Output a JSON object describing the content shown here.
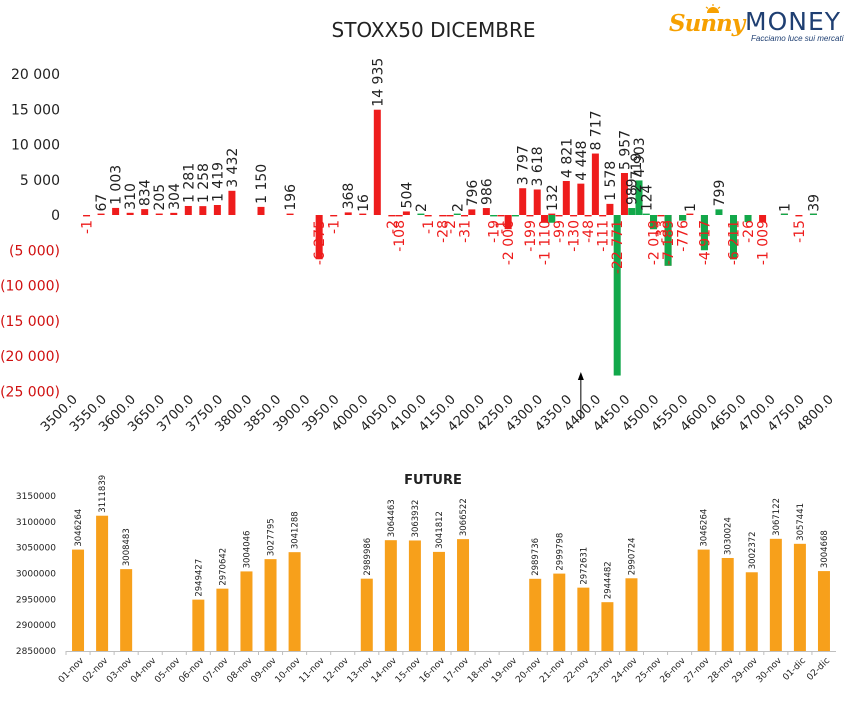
{
  "title": "STOXX50 DICEMBRE",
  "logo": {
    "word1": "Sunny",
    "word2": "MONEY",
    "tagline": "Facciamo luce sui mercati"
  },
  "colors": {
    "red": "#ee1c1c",
    "green": "#12a84a",
    "orange": "#f7a01b",
    "axis_neg": "#d01010",
    "text": "#222222"
  },
  "chart_data": [
    {
      "type": "bar",
      "title": "STOXX50 DICEMBRE",
      "xlabel": "",
      "ylabel": "",
      "ylim": [
        -25000,
        20000
      ],
      "yticks": [
        {
          "v": 20000,
          "label": "20 000"
        },
        {
          "v": 15000,
          "label": "15 000"
        },
        {
          "v": 10000,
          "label": "10 000"
        },
        {
          "v": 5000,
          "label": "5 000"
        },
        {
          "v": 0,
          "label": "0"
        },
        {
          "v": -5000,
          "label": "(5 000)"
        },
        {
          "v": -10000,
          "label": "(10 000)"
        },
        {
          "v": -15000,
          "label": "(15 000)"
        },
        {
          "v": -20000,
          "label": "(20 000)"
        },
        {
          "v": -25000,
          "label": "(25 000)"
        }
      ],
      "xlim": [
        3500,
        4800
      ],
      "xticks": [
        "3500.0",
        "3550.0",
        "3600.0",
        "3650.0",
        "3700.0",
        "3750.0",
        "3800.0",
        "3850.0",
        "3900.0",
        "3950.0",
        "4000.0",
        "4050.0",
        "4100.0",
        "4150.0",
        "4200.0",
        "4250.0",
        "4300.0",
        "4350.0",
        "4400.0",
        "4450.0",
        "4500.0",
        "4550.0",
        "4600.0",
        "4650.0",
        "4700.0",
        "4750.0",
        "4800.0"
      ],
      "grid": false,
      "current_level_marker": 4375,
      "series": [
        {
          "color": "red",
          "points": [
            {
              "x": 3525,
              "v": -1,
              "label": "-1"
            },
            {
              "x": 3550,
              "v": 67,
              "label": "67"
            },
            {
              "x": 3575,
              "v": 1003,
              "label": "1 003"
            },
            {
              "x": 3600,
              "v": 310,
              "label": "310"
            },
            {
              "x": 3625,
              "v": 834,
              "label": "834"
            },
            {
              "x": 3650,
              "v": 205,
              "label": "205"
            },
            {
              "x": 3675,
              "v": 304,
              "label": "304"
            },
            {
              "x": 3700,
              "v": 1281,
              "label": "1 281"
            },
            {
              "x": 3725,
              "v": 1258,
              "label": "1 258"
            },
            {
              "x": 3750,
              "v": 1419,
              "label": "1 419"
            },
            {
              "x": 3775,
              "v": 3432,
              "label": "3 432"
            },
            {
              "x": 3825,
              "v": 1150,
              "label": "1 150"
            },
            {
              "x": 3875,
              "v": 196,
              "label": "196"
            },
            {
              "x": 3925,
              "v": -6275,
              "label": "-6 275"
            },
            {
              "x": 3950,
              "v": -1,
              "label": "-1"
            },
            {
              "x": 3975,
              "v": 368,
              "label": "368"
            },
            {
              "x": 4000,
              "v": 16,
              "label": "16"
            },
            {
              "x": 4025,
              "v": 14935,
              "label": "14 935"
            },
            {
              "x": 4050,
              "v": -2,
              "label": "-2"
            },
            {
              "x": 4062.5,
              "v": -108,
              "label": "-108"
            },
            {
              "x": 4075,
              "v": 504,
              "label": "504"
            },
            {
              "x": 4112.5,
              "v": -1,
              "label": "-1"
            },
            {
              "x": 4137.5,
              "v": -28,
              "label": "-28"
            },
            {
              "x": 4150,
              "v": -2,
              "label": "-2"
            },
            {
              "x": 4175,
              "v": -31,
              "label": "-31"
            },
            {
              "x": 4187.5,
              "v": 796,
              "label": "796"
            },
            {
              "x": 4212.5,
              "v": 986,
              "label": "986"
            },
            {
              "x": 4237.5,
              "v": -1,
              "label": "-1"
            },
            {
              "x": 4250,
              "v": -2006,
              "label": "-2 006"
            },
            {
              "x": 4275,
              "v": 3797,
              "label": "3 797"
            },
            {
              "x": 4287.5,
              "v": -199,
              "label": "-199"
            },
            {
              "x": 4300,
              "v": 3618,
              "label": "3 618"
            },
            {
              "x": 4312.5,
              "v": -1110,
              "label": "-1 110"
            },
            {
              "x": 4325,
              "v": 132,
              "label": "132"
            },
            {
              "x": 4337.5,
              "v": -99,
              "label": "-99"
            },
            {
              "x": 4350,
              "v": 4821,
              "label": "4 821"
            },
            {
              "x": 4362.5,
              "v": -130,
              "label": "-130"
            },
            {
              "x": 4375,
              "v": 4448,
              "label": "4 448"
            },
            {
              "x": 4387.5,
              "v": -48,
              "label": "-48"
            },
            {
              "x": 4400,
              "v": 8717,
              "label": "8 717"
            },
            {
              "x": 4412.5,
              "v": -111,
              "label": "-111"
            },
            {
              "x": 4425,
              "v": 1578,
              "label": "1 578"
            },
            {
              "x": 4450,
              "v": 5957,
              "label": "5 957"
            },
            {
              "x": 4500,
              "v": -2019,
              "label": "-2 019"
            },
            {
              "x": 4512.5,
              "v": -33,
              "label": "-33"
            },
            {
              "x": 4525,
              "v": -7189,
              "label": "-7 189"
            },
            {
              "x": 4550,
              "v": -776,
              "label": "-776"
            },
            {
              "x": 4562.5,
              "v": 1,
              "label": "1"
            },
            {
              "x": 4587.5,
              "v": -4917,
              "label": "-4 917"
            },
            {
              "x": 4637.5,
              "v": -6211,
              "label": "-6 211"
            },
            {
              "x": 4662.5,
              "v": -26,
              "label": "-26"
            },
            {
              "x": 4687.5,
              "v": -1009,
              "label": "-1 009"
            },
            {
              "x": 4725,
              "v": 1,
              "label": "1"
            },
            {
              "x": 4750,
              "v": -15,
              "label": "-15"
            },
            {
              "x": 4775,
              "v": 39,
              "label": "39"
            }
          ]
        },
        {
          "color": "green",
          "points": [
            {
              "x": 4100,
              "v": 2,
              "label": "2"
            },
            {
              "x": 4162.5,
              "v": 2,
              "label": "2"
            },
            {
              "x": 4225,
              "v": -19,
              "label": "-19"
            },
            {
              "x": 4262.5,
              "v": -200,
              "label": ""
            },
            {
              "x": 4325,
              "v": -1100,
              "label": ""
            },
            {
              "x": 4437.5,
              "v": -22771,
              "label": "-22 771"
            },
            {
              "x": 4462.5,
              "v": 989,
              "label": "989"
            },
            {
              "x": 4475,
              "v": 4903,
              "label": "4 903"
            },
            {
              "x": 4487.5,
              "v": 124,
              "label": "124"
            },
            {
              "x": 4500,
              "v": -2000,
              "label": ""
            },
            {
              "x": 4525,
              "v": -7200,
              "label": ""
            },
            {
              "x": 4550,
              "v": -800,
              "label": ""
            },
            {
              "x": 4587.5,
              "v": -5000,
              "label": ""
            },
            {
              "x": 4612.5,
              "v": 799,
              "label": "799"
            },
            {
              "x": 4637.5,
              "v": -6300,
              "label": ""
            },
            {
              "x": 4662.5,
              "v": -1009,
              "label": ""
            },
            {
              "x": 4725,
              "v": 1,
              "label": ""
            },
            {
              "x": 4775,
              "v": 39,
              "label": ""
            }
          ],
          "extra_labels": [
            {
              "x": 4470,
              "v": 2719,
              "label": "2 719"
            }
          ]
        }
      ]
    },
    {
      "type": "bar",
      "title": "FUTURE",
      "xlabel": "",
      "ylabel": "",
      "ylim": [
        2850000,
        3150000
      ],
      "yticks": [
        3150000,
        3100000,
        3050000,
        3000000,
        2950000,
        2900000,
        2850000
      ],
      "grid": false,
      "categories": [
        "01-nov",
        "02-nov",
        "03-nov",
        "04-nov",
        "05-nov",
        "06-nov",
        "07-nov",
        "08-nov",
        "09-nov",
        "10-nov",
        "11-nov",
        "12-nov",
        "13-nov",
        "14-nov",
        "15-nov",
        "16-nov",
        "17-nov",
        "18-nov",
        "19-nov",
        "20-nov",
        "21-nov",
        "22-nov",
        "23-nov",
        "24-nov",
        "25-nov",
        "26-nov",
        "27-nov",
        "28-nov",
        "29-nov",
        "30-nov",
        "01-dic",
        "02-dic"
      ],
      "values": [
        3046264,
        3111839,
        3008483,
        null,
        null,
        2949427,
        2970642,
        3004046,
        3027795,
        3041288,
        null,
        null,
        2989986,
        3064463,
        3063932,
        3041812,
        3066522,
        null,
        null,
        2989736,
        2999798,
        2972631,
        2944482,
        2990724,
        null,
        null,
        3046264,
        3030024,
        3002372,
        3067122,
        3057441,
        3004668
      ]
    }
  ]
}
